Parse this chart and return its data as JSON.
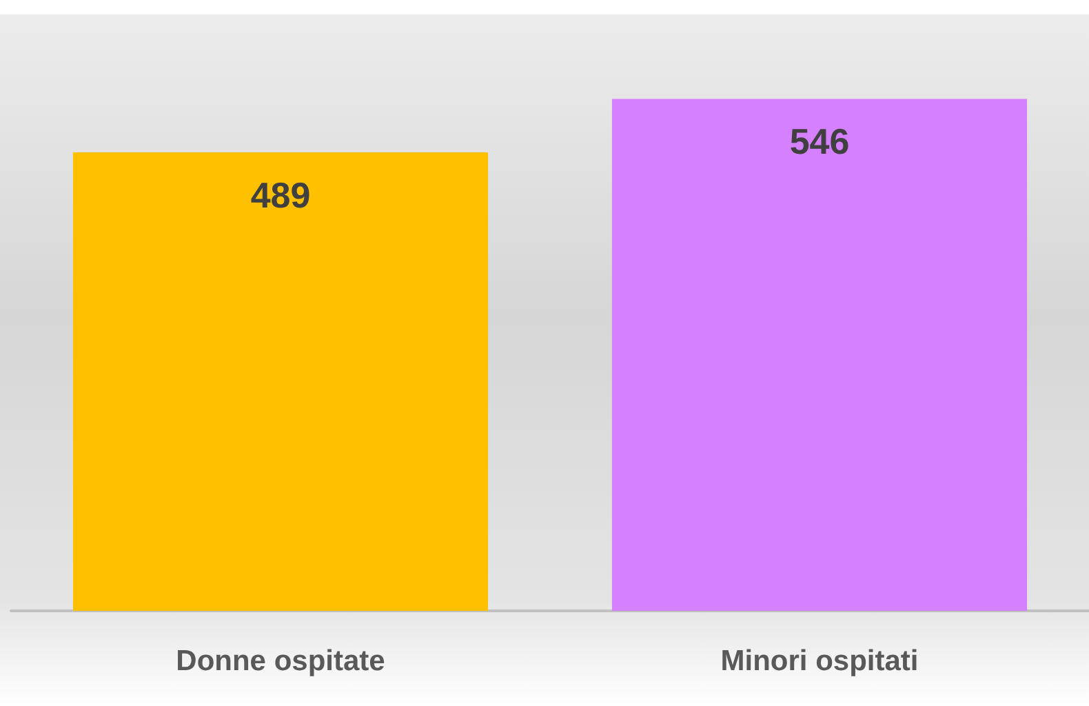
{
  "chart_data": {
    "type": "bar",
    "categories": [
      "Donne ospitate",
      "Minori ospitati"
    ],
    "values": [
      489,
      546
    ],
    "colors": [
      "#ffc000",
      "#d580fe"
    ],
    "data_labels": true
  }
}
